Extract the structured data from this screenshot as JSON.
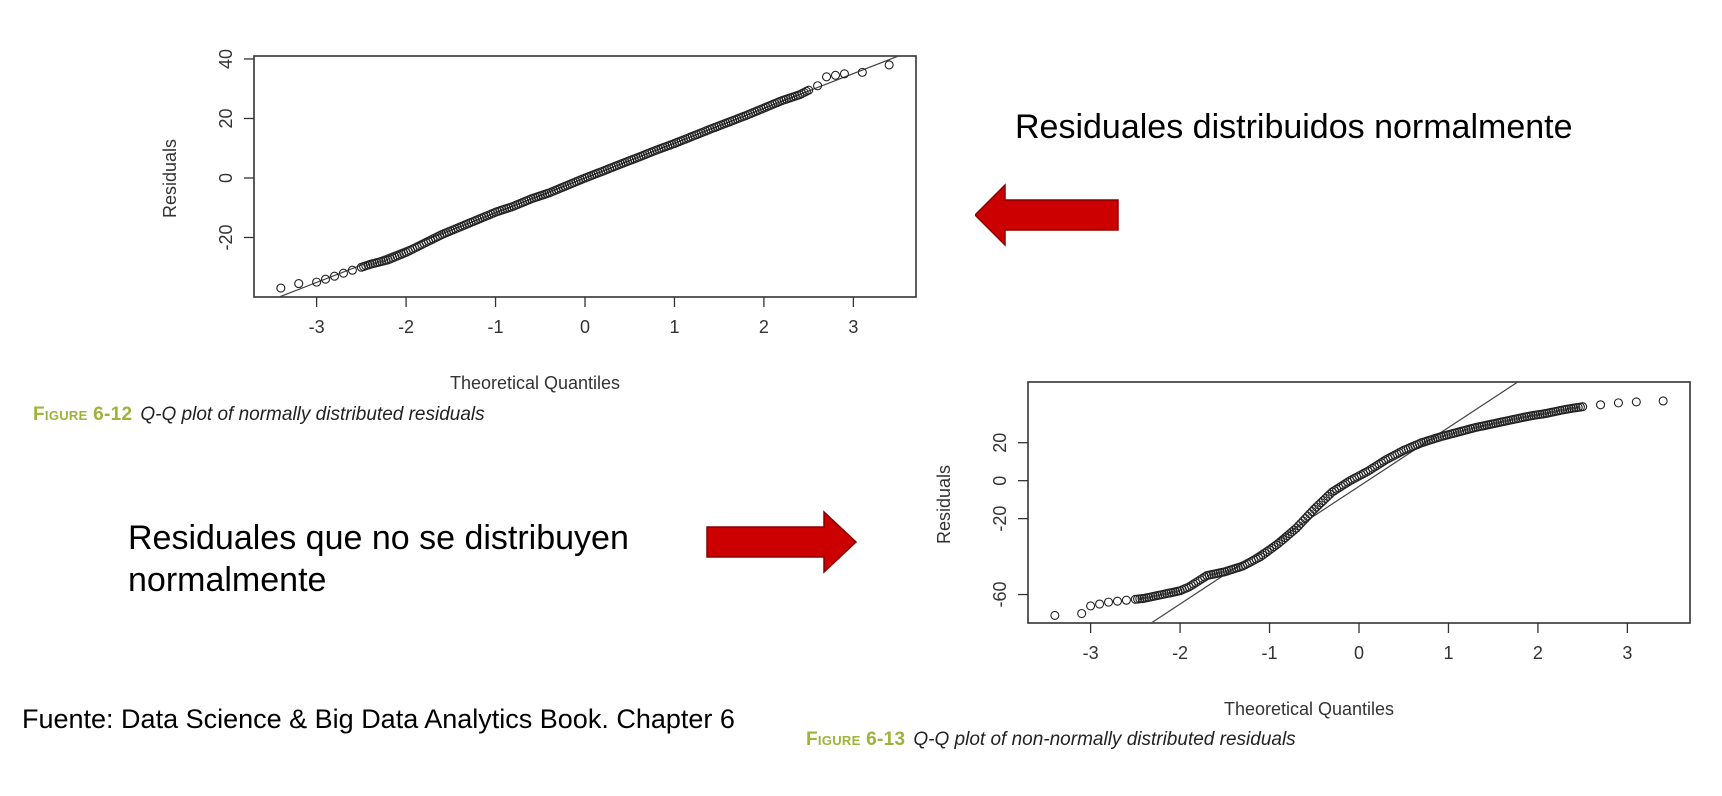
{
  "chart_data": [
    {
      "type": "scatter",
      "title": "",
      "xlabel": "Theoretical Quantiles",
      "ylabel": "Residuals",
      "xlim": [
        -3.7,
        3.7
      ],
      "ylim": [
        -40,
        41
      ],
      "xticks": [
        -3,
        -2,
        -1,
        0,
        1,
        2,
        3
      ],
      "yticks": [
        -20,
        0,
        20,
        40
      ],
      "reference_line": {
        "intercept": 0,
        "slope": 11.7
      },
      "series": [
        {
          "points": [
            [
              -3.4,
              -37
            ],
            [
              -3.2,
              -35.5
            ],
            [
              -3.0,
              -35
            ],
            [
              -2.9,
              -34
            ],
            [
              -2.8,
              -33
            ],
            [
              -2.7,
              -32
            ],
            [
              -2.6,
              -31
            ],
            [
              -2.5,
              -30
            ],
            [
              -2.4,
              -29
            ],
            [
              -2.2,
              -27.5
            ],
            [
              -2.0,
              -25
            ],
            [
              -1.8,
              -22
            ],
            [
              -1.6,
              -19
            ],
            [
              -1.4,
              -16.5
            ],
            [
              -1.2,
              -14
            ],
            [
              -1.0,
              -11.5
            ],
            [
              -0.8,
              -9.5
            ],
            [
              -0.6,
              -7
            ],
            [
              -0.4,
              -5
            ],
            [
              -0.2,
              -2.5
            ],
            [
              0.0,
              0
            ],
            [
              0.2,
              2.3
            ],
            [
              0.4,
              4.7
            ],
            [
              0.6,
              7
            ],
            [
              0.8,
              9.4
            ],
            [
              1.0,
              11.6
            ],
            [
              1.2,
              14
            ],
            [
              1.4,
              16.4
            ],
            [
              1.6,
              18.7
            ],
            [
              1.8,
              21
            ],
            [
              2.0,
              23.5
            ],
            [
              2.2,
              26
            ],
            [
              2.4,
              28
            ],
            [
              2.5,
              29.5
            ],
            [
              2.6,
              31
            ],
            [
              2.7,
              34
            ],
            [
              2.8,
              34.5
            ],
            [
              2.9,
              35
            ],
            [
              3.1,
              35.5
            ],
            [
              3.4,
              38
            ]
          ]
        }
      ],
      "caption_label": "Figure 6-12",
      "caption_text": "Q-Q plot of normally distributed residuals"
    },
    {
      "type": "scatter",
      "title": "",
      "xlabel": "Theoretical Quantiles",
      "ylabel": "Residuals",
      "xlim": [
        -3.7,
        3.7
      ],
      "ylim": [
        -75,
        52
      ],
      "xticks": [
        -3,
        -2,
        -1,
        0,
        1,
        2,
        3
      ],
      "yticks": [
        -60,
        -20,
        0,
        20
      ],
      "reference_line": {
        "intercept": -3,
        "slope": 31
      },
      "series": [
        {
          "points": [
            [
              -3.4,
              -71
            ],
            [
              -3.1,
              -70
            ],
            [
              -3.0,
              -66
            ],
            [
              -2.9,
              -65
            ],
            [
              -2.8,
              -64
            ],
            [
              -2.7,
              -63.5
            ],
            [
              -2.6,
              -63
            ],
            [
              -2.5,
              -62.5
            ],
            [
              -2.4,
              -62
            ],
            [
              -2.3,
              -61
            ],
            [
              -2.2,
              -60
            ],
            [
              -2.1,
              -59
            ],
            [
              -2.0,
              -58
            ],
            [
              -1.9,
              -56
            ],
            [
              -1.8,
              -53
            ],
            [
              -1.7,
              -50
            ],
            [
              -1.5,
              -48
            ],
            [
              -1.3,
              -45
            ],
            [
              -1.1,
              -40
            ],
            [
              -0.9,
              -33
            ],
            [
              -0.7,
              -25
            ],
            [
              -0.5,
              -15
            ],
            [
              -0.3,
              -6
            ],
            [
              -0.1,
              0
            ],
            [
              0.1,
              5
            ],
            [
              0.3,
              11
            ],
            [
              0.5,
              16
            ],
            [
              0.7,
              20
            ],
            [
              0.9,
              23
            ],
            [
              1.1,
              25.5
            ],
            [
              1.3,
              28
            ],
            [
              1.5,
              30
            ],
            [
              1.7,
              32
            ],
            [
              1.9,
              34
            ],
            [
              2.1,
              35.5
            ],
            [
              2.3,
              37.5
            ],
            [
              2.5,
              39
            ],
            [
              2.7,
              40
            ],
            [
              2.9,
              41
            ],
            [
              3.1,
              41.5
            ],
            [
              3.4,
              42
            ]
          ]
        }
      ],
      "caption_label": "Figure 6-13",
      "caption_text": "Q-Q plot of non-normally distributed residuals"
    }
  ],
  "annotations": {
    "normal": "Residuales distribuidos normalmente",
    "non_normal": "Residuales que no se distribuyen normalmente"
  },
  "source": "Fuente: Data Science & Big Data Analytics Book. Chapter 6",
  "colors": {
    "arrow": "#cc0000",
    "caption_label": "#9db43a"
  }
}
